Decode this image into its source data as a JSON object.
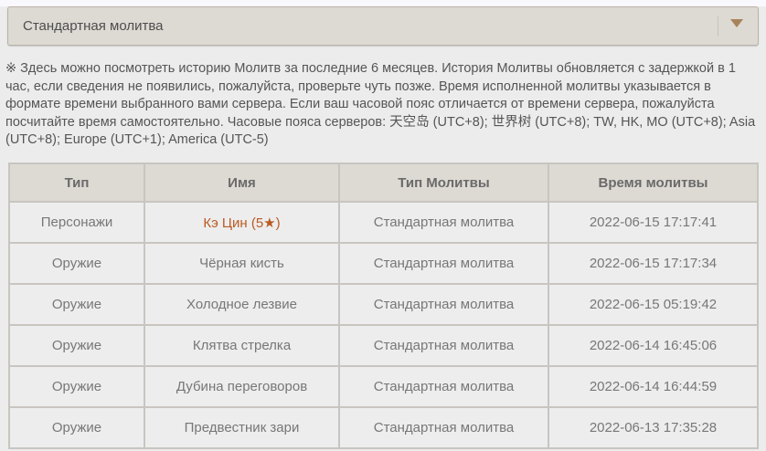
{
  "filter": {
    "selected": "Стандартная молитва",
    "icon": "chevron-down-icon",
    "accent": "#a7835a"
  },
  "note": "※ Здесь можно посмотреть историю Молитв за последние 6 месяцев. История Молитвы обновляется с задержкой в 1 час, если сведения не появились, пожалуйста, проверьте чуть позже. Время исполненной молитвы указывается в формате времени выбранного вами сервера. Если ваш часовой пояс отличается от времени сервера, пожалуйста посчитайте время самостоятельно. Часовые пояса серверов: 天空岛 (UTC+8); 世界树 (UTC+8); TW, HK, MO (UTC+8); Asia (UTC+8); Europe (UTC+1); America (UTC-5)",
  "table": {
    "headers": [
      "Тип",
      "Имя",
      "Тип Молитвы",
      "Время молитвы"
    ],
    "rows": [
      {
        "type": "Персонажи",
        "name": "Кэ Цин (5★)",
        "wish": "Стандартная молитва",
        "time": "2022-06-15 17:17:41",
        "rarity": 5
      },
      {
        "type": "Оружие",
        "name": "Чёрная кисть",
        "wish": "Стандартная молитва",
        "time": "2022-06-15 17:17:34"
      },
      {
        "type": "Оружие",
        "name": "Холодное лезвие",
        "wish": "Стандартная молитва",
        "time": "2022-06-15 05:19:42"
      },
      {
        "type": "Оружие",
        "name": "Клятва стрелка",
        "wish": "Стандартная молитва",
        "time": "2022-06-14 16:45:06"
      },
      {
        "type": "Оружие",
        "name": "Дубина переговоров",
        "wish": "Стандартная молитва",
        "time": "2022-06-14 16:44:59"
      },
      {
        "type": "Оружие",
        "name": "Предвестник зари",
        "wish": "Стандартная молитва",
        "time": "2022-06-13 17:35:28"
      }
    ],
    "five_star_color": "#bb5a22"
  }
}
